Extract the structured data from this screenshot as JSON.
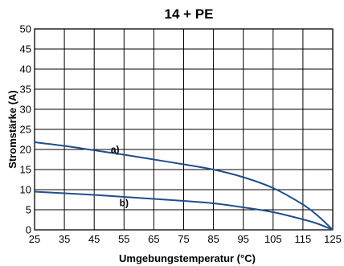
{
  "chart_data": {
    "type": "line",
    "title": "14 + PE",
    "xlabel": "Umgebungstemperatur (°C)",
    "ylabel": "Stromstärke (A)",
    "xlim": [
      25,
      125
    ],
    "ylim": [
      0,
      50
    ],
    "xticks": [
      25,
      35,
      45,
      55,
      65,
      75,
      85,
      95,
      105,
      115,
      125
    ],
    "yticks": [
      0,
      5,
      10,
      15,
      20,
      25,
      30,
      35,
      40,
      45,
      50
    ],
    "grid": true,
    "line_color": "#1f4e8c",
    "series": [
      {
        "annotation": "a)",
        "points": [
          [
            25,
            21.8
          ],
          [
            35,
            20.9
          ],
          [
            45,
            19.8
          ],
          [
            55,
            18.7
          ],
          [
            65,
            17.5
          ],
          [
            75,
            16.3
          ],
          [
            85,
            15.0
          ],
          [
            95,
            13.1
          ],
          [
            105,
            10.4
          ],
          [
            115,
            6.3
          ],
          [
            120,
            3.5
          ],
          [
            125,
            0
          ]
        ]
      },
      {
        "annotation": "b)",
        "points": [
          [
            25,
            9.5
          ],
          [
            35,
            9.1
          ],
          [
            45,
            8.7
          ],
          [
            55,
            8.2
          ],
          [
            65,
            7.7
          ],
          [
            75,
            7.2
          ],
          [
            85,
            6.6
          ],
          [
            95,
            5.6
          ],
          [
            105,
            4.4
          ],
          [
            115,
            2.6
          ],
          [
            120,
            1.5
          ],
          [
            125,
            0
          ]
        ]
      }
    ]
  }
}
